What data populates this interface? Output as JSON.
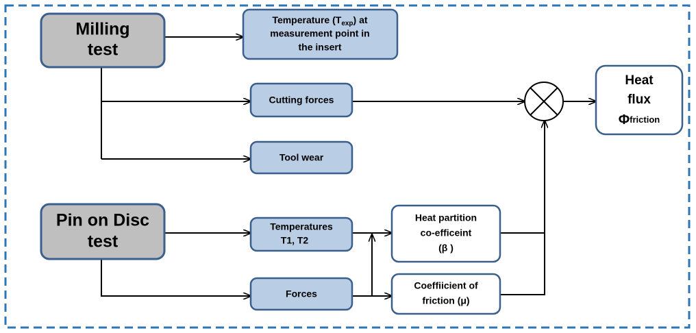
{
  "nodes": [
    {
      "lines": [
        "Milling",
        "test"
      ]
    },
    {
      "lines": [
        [
          "Temperature (T",
          "exp",
          ") at"
        ],
        "measurement point in",
        "the insert"
      ]
    },
    {
      "lines": [
        "Cutting forces"
      ]
    },
    {
      "lines": [
        "Tool wear"
      ]
    },
    {
      "lines": [
        "Pin on Disc",
        "test"
      ]
    },
    {
      "lines": [
        "Temperatures",
        "T1, T2"
      ]
    },
    {
      "lines": [
        "Forces"
      ]
    },
    {
      "lines": [
        "Heat partition",
        "co-efficeint",
        "(β )"
      ]
    },
    {
      "lines": [
        "Coeffiicient of",
        "friction (μ)"
      ]
    },
    {
      "lines": [
        "Heat",
        "flux",
        [
          "Φ",
          "friction"
        ]
      ]
    }
  ]
}
